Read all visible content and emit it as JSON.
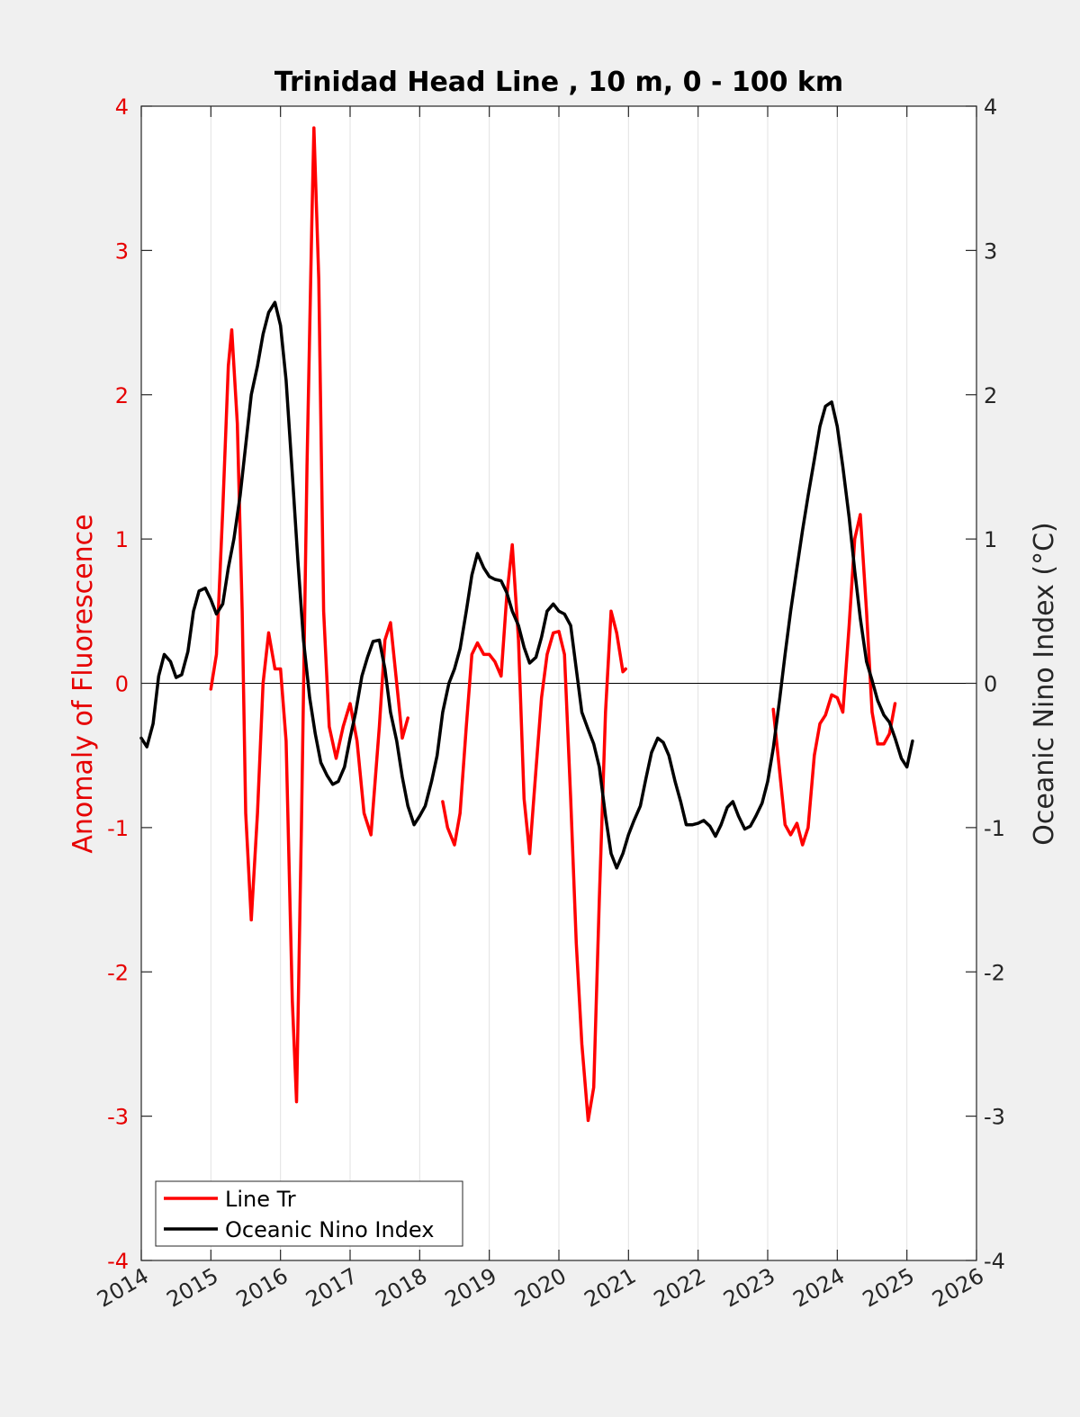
{
  "chart_data": {
    "type": "line",
    "title": "Trinidad Head Line , 10 m, 0 - 100 km",
    "ylabel_left": "Anomaly of Fluorescence",
    "ylabel_right": "Oceanic Nino Index (°C)",
    "xlim": [
      2014,
      2026
    ],
    "ylim_left": [
      -4,
      4
    ],
    "ylim_right": [
      -4,
      4
    ],
    "x_ticks": [
      "2014",
      "2015",
      "2016",
      "2017",
      "2018",
      "2019",
      "2020",
      "2021",
      "2022",
      "2023",
      "2024",
      "2025",
      "2026"
    ],
    "y_ticks_left": [
      "4",
      "3",
      "2",
      "1",
      "0",
      "-1",
      "-2",
      "-3",
      "-4"
    ],
    "y_ticks_right": [
      "4",
      "3",
      "2",
      "1",
      "0",
      "-1",
      "-2",
      "-3",
      "-4"
    ],
    "grid": "vertical",
    "zero_line": true,
    "legend_position": "bottom-left",
    "colors": {
      "line_tr": "#ff0000",
      "oni": "#000000",
      "left_axis": "#e60000"
    },
    "series": [
      {
        "name": "Line Tr",
        "axis": "left",
        "color": "#ff0000",
        "segments": [
          [
            [
              2015.0,
              -0.04
            ],
            [
              2015.08,
              0.2
            ],
            [
              2015.17,
              1.2
            ],
            [
              2015.25,
              2.2
            ],
            [
              2015.3,
              2.45
            ],
            [
              2015.38,
              1.8
            ],
            [
              2015.45,
              0.5
            ],
            [
              2015.5,
              -0.9
            ],
            [
              2015.58,
              -1.64
            ],
            [
              2015.67,
              -0.9
            ],
            [
              2015.75,
              0.0
            ],
            [
              2015.83,
              0.35
            ],
            [
              2015.92,
              0.1
            ],
            [
              2016.0,
              0.1
            ],
            [
              2016.08,
              -0.4
            ],
            [
              2016.17,
              -2.2
            ],
            [
              2016.23,
              -2.9
            ],
            [
              2016.3,
              -1.0
            ],
            [
              2016.38,
              1.5
            ],
            [
              2016.45,
              3.2
            ],
            [
              2016.48,
              3.85
            ],
            [
              2016.55,
              2.8
            ],
            [
              2016.62,
              0.5
            ],
            [
              2016.7,
              -0.3
            ],
            [
              2016.8,
              -0.52
            ],
            [
              2016.9,
              -0.3
            ],
            [
              2017.0,
              -0.14
            ],
            [
              2017.1,
              -0.4
            ],
            [
              2017.2,
              -0.9
            ],
            [
              2017.3,
              -1.05
            ],
            [
              2017.42,
              -0.3
            ],
            [
              2017.5,
              0.3
            ],
            [
              2017.58,
              0.42
            ],
            [
              2017.67,
              0.0
            ],
            [
              2017.75,
              -0.38
            ],
            [
              2017.83,
              -0.24
            ]
          ],
          [
            [
              2018.33,
              -0.82
            ],
            [
              2018.4,
              -1.0
            ],
            [
              2018.5,
              -1.12
            ],
            [
              2018.58,
              -0.9
            ],
            [
              2018.67,
              -0.3
            ],
            [
              2018.75,
              0.2
            ],
            [
              2018.83,
              0.28
            ],
            [
              2018.92,
              0.2
            ],
            [
              2019.0,
              0.2
            ],
            [
              2019.08,
              0.15
            ],
            [
              2019.17,
              0.05
            ],
            [
              2019.25,
              0.6
            ],
            [
              2019.33,
              0.96
            ],
            [
              2019.42,
              0.3
            ],
            [
              2019.5,
              -0.8
            ],
            [
              2019.58,
              -1.18
            ],
            [
              2019.67,
              -0.6
            ],
            [
              2019.75,
              -0.1
            ],
            [
              2019.83,
              0.2
            ],
            [
              2019.92,
              0.35
            ],
            [
              2020.0,
              0.36
            ],
            [
              2020.08,
              0.2
            ],
            [
              2020.17,
              -0.8
            ],
            [
              2020.25,
              -1.8
            ],
            [
              2020.33,
              -2.5
            ],
            [
              2020.42,
              -3.03
            ],
            [
              2020.5,
              -2.8
            ],
            [
              2020.58,
              -1.5
            ],
            [
              2020.67,
              -0.2
            ],
            [
              2020.75,
              0.5
            ],
            [
              2020.83,
              0.35
            ],
            [
              2020.92,
              0.08
            ],
            [
              2020.96,
              0.1
            ]
          ],
          [
            [
              2023.08,
              -0.18
            ],
            [
              2023.17,
              -0.6
            ],
            [
              2023.25,
              -0.98
            ],
            [
              2023.33,
              -1.05
            ],
            [
              2023.42,
              -0.97
            ],
            [
              2023.5,
              -1.12
            ],
            [
              2023.58,
              -1.0
            ],
            [
              2023.67,
              -0.5
            ],
            [
              2023.75,
              -0.28
            ],
            [
              2023.83,
              -0.22
            ],
            [
              2023.92,
              -0.08
            ],
            [
              2024.0,
              -0.1
            ],
            [
              2024.08,
              -0.2
            ],
            [
              2024.17,
              0.4
            ],
            [
              2024.25,
              1.0
            ],
            [
              2024.33,
              1.17
            ],
            [
              2024.42,
              0.5
            ],
            [
              2024.5,
              -0.2
            ],
            [
              2024.58,
              -0.42
            ],
            [
              2024.67,
              -0.42
            ],
            [
              2024.75,
              -0.35
            ],
            [
              2024.83,
              -0.14
            ]
          ]
        ]
      },
      {
        "name": "Oceanic Nino Index",
        "axis": "right",
        "color": "#000000",
        "segments": [
          [
            [
              2014.0,
              -0.38
            ],
            [
              2014.08,
              -0.44
            ],
            [
              2014.17,
              -0.28
            ],
            [
              2014.25,
              0.05
            ],
            [
              2014.33,
              0.2
            ],
            [
              2014.42,
              0.15
            ],
            [
              2014.5,
              0.04
            ],
            [
              2014.58,
              0.06
            ],
            [
              2014.67,
              0.22
            ],
            [
              2014.75,
              0.5
            ],
            [
              2014.83,
              0.64
            ],
            [
              2014.92,
              0.66
            ],
            [
              2015.0,
              0.58
            ],
            [
              2015.08,
              0.48
            ],
            [
              2015.17,
              0.55
            ],
            [
              2015.25,
              0.8
            ],
            [
              2015.33,
              1.0
            ],
            [
              2015.42,
              1.3
            ],
            [
              2015.5,
              1.65
            ],
            [
              2015.58,
              2.0
            ],
            [
              2015.67,
              2.2
            ],
            [
              2015.75,
              2.42
            ],
            [
              2015.83,
              2.57
            ],
            [
              2015.92,
              2.64
            ],
            [
              2016.0,
              2.48
            ],
            [
              2016.08,
              2.1
            ],
            [
              2016.17,
              1.45
            ],
            [
              2016.25,
              0.85
            ],
            [
              2016.33,
              0.3
            ],
            [
              2016.42,
              -0.1
            ],
            [
              2016.5,
              -0.35
            ],
            [
              2016.58,
              -0.55
            ],
            [
              2016.67,
              -0.64
            ],
            [
              2016.75,
              -0.7
            ],
            [
              2016.83,
              -0.68
            ],
            [
              2016.92,
              -0.58
            ],
            [
              2017.0,
              -0.38
            ],
            [
              2017.08,
              -0.2
            ],
            [
              2017.17,
              0.05
            ],
            [
              2017.25,
              0.18
            ],
            [
              2017.33,
              0.29
            ],
            [
              2017.42,
              0.3
            ],
            [
              2017.5,
              0.1
            ],
            [
              2017.58,
              -0.2
            ],
            [
              2017.67,
              -0.4
            ],
            [
              2017.75,
              -0.65
            ],
            [
              2017.83,
              -0.85
            ],
            [
              2017.92,
              -0.98
            ],
            [
              2018.0,
              -0.92
            ],
            [
              2018.08,
              -0.85
            ],
            [
              2018.17,
              -0.68
            ],
            [
              2018.25,
              -0.5
            ],
            [
              2018.33,
              -0.2
            ],
            [
              2018.42,
              0.0
            ],
            [
              2018.5,
              0.1
            ],
            [
              2018.58,
              0.24
            ],
            [
              2018.67,
              0.5
            ],
            [
              2018.75,
              0.75
            ],
            [
              2018.83,
              0.9
            ],
            [
              2018.92,
              0.8
            ],
            [
              2019.0,
              0.74
            ],
            [
              2019.08,
              0.72
            ],
            [
              2019.17,
              0.71
            ],
            [
              2019.25,
              0.63
            ],
            [
              2019.33,
              0.5
            ],
            [
              2019.42,
              0.4
            ],
            [
              2019.5,
              0.25
            ],
            [
              2019.58,
              0.14
            ],
            [
              2019.67,
              0.18
            ],
            [
              2019.75,
              0.32
            ],
            [
              2019.83,
              0.5
            ],
            [
              2019.92,
              0.55
            ],
            [
              2020.0,
              0.5
            ],
            [
              2020.08,
              0.48
            ],
            [
              2020.17,
              0.4
            ],
            [
              2020.25,
              0.1
            ],
            [
              2020.33,
              -0.2
            ],
            [
              2020.42,
              -0.32
            ],
            [
              2020.5,
              -0.42
            ],
            [
              2020.58,
              -0.58
            ],
            [
              2020.67,
              -0.92
            ],
            [
              2020.75,
              -1.18
            ],
            [
              2020.83,
              -1.28
            ],
            [
              2020.92,
              -1.18
            ],
            [
              2021.0,
              -1.05
            ],
            [
              2021.08,
              -0.95
            ],
            [
              2021.17,
              -0.85
            ],
            [
              2021.25,
              -0.66
            ],
            [
              2021.33,
              -0.48
            ],
            [
              2021.42,
              -0.38
            ],
            [
              2021.5,
              -0.41
            ],
            [
              2021.58,
              -0.5
            ],
            [
              2021.67,
              -0.68
            ],
            [
              2021.75,
              -0.82
            ],
            [
              2021.83,
              -0.98
            ],
            [
              2021.92,
              -0.98
            ],
            [
              2022.0,
              -0.97
            ],
            [
              2022.08,
              -0.95
            ],
            [
              2022.17,
              -0.99
            ],
            [
              2022.25,
              -1.06
            ],
            [
              2022.33,
              -0.98
            ],
            [
              2022.42,
              -0.86
            ],
            [
              2022.5,
              -0.82
            ],
            [
              2022.58,
              -0.92
            ],
            [
              2022.67,
              -1.01
            ],
            [
              2022.75,
              -0.99
            ],
            [
              2022.83,
              -0.92
            ],
            [
              2022.92,
              -0.83
            ],
            [
              2023.0,
              -0.68
            ],
            [
              2023.08,
              -0.45
            ],
            [
              2023.17,
              -0.12
            ],
            [
              2023.25,
              0.2
            ],
            [
              2023.33,
              0.5
            ],
            [
              2023.42,
              0.8
            ],
            [
              2023.5,
              1.06
            ],
            [
              2023.58,
              1.3
            ],
            [
              2023.67,
              1.55
            ],
            [
              2023.75,
              1.78
            ],
            [
              2023.83,
              1.92
            ],
            [
              2023.92,
              1.95
            ],
            [
              2024.0,
              1.78
            ],
            [
              2024.08,
              1.5
            ],
            [
              2024.17,
              1.15
            ],
            [
              2024.25,
              0.78
            ],
            [
              2024.33,
              0.45
            ],
            [
              2024.42,
              0.15
            ],
            [
              2024.5,
              0.02
            ],
            [
              2024.58,
              -0.12
            ],
            [
              2024.67,
              -0.22
            ],
            [
              2024.75,
              -0.27
            ],
            [
              2024.83,
              -0.38
            ],
            [
              2024.92,
              -0.52
            ],
            [
              2025.0,
              -0.58
            ],
            [
              2025.08,
              -0.4
            ]
          ]
        ]
      }
    ]
  }
}
